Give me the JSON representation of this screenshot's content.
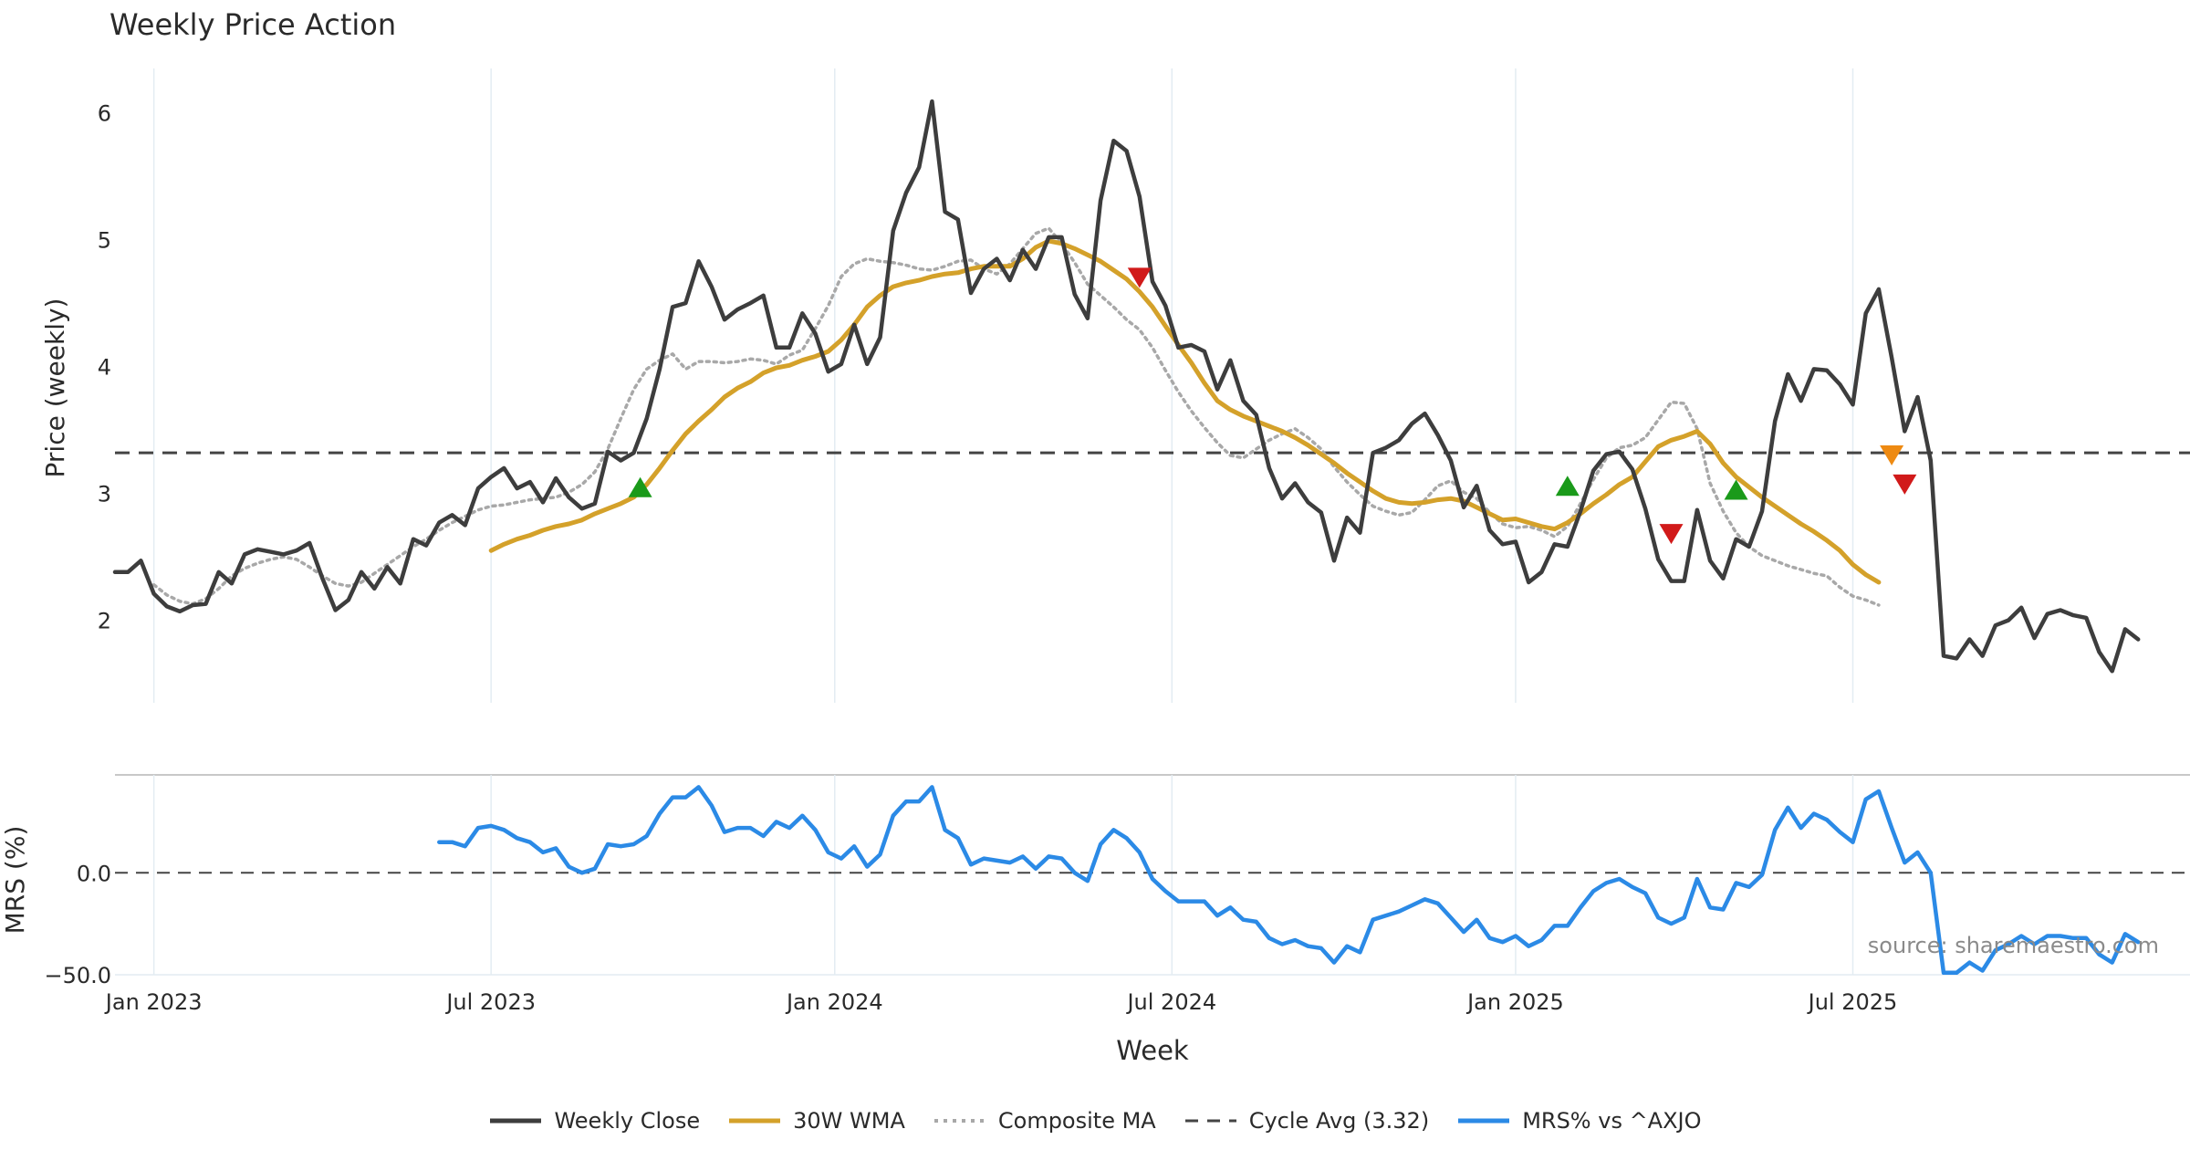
{
  "colors": {
    "close": "#3d3d3d",
    "wma": "#d4a12a",
    "composite": "#a8a8a8",
    "cycle": "#444444",
    "mrs": "#2b8ae6",
    "buy": "#1a9a1a",
    "sell": "#d11a1a",
    "warn": "#ee8a12",
    "grid": "#e3ecf2"
  },
  "chart_data": [
    {
      "type": "line",
      "title": "Weekly Price Action",
      "ylabel": "Price (weekly)",
      "xlabel": "Week",
      "ylim": [
        1.35,
        6.35
      ],
      "yticks": [
        2,
        3,
        4,
        5,
        6
      ],
      "xticks": [
        {
          "label": "Jan 2023",
          "week": 3
        },
        {
          "label": "Jul 2023",
          "week": 29
        },
        {
          "label": "Jan 2024",
          "week": 55.5
        },
        {
          "label": "Jul 2024",
          "week": 81.5
        },
        {
          "label": "Jan 2025",
          "week": 108
        },
        {
          "label": "Jul 2025",
          "week": 134
        }
      ],
      "cycle_avg": 3.32,
      "series": [
        {
          "name": "Weekly Close",
          "start_week": 0,
          "values": [
            2.38,
            2.38,
            2.47,
            2.21,
            2.11,
            2.07,
            2.12,
            2.13,
            2.38,
            2.29,
            2.52,
            2.56,
            2.54,
            2.52,
            2.55,
            2.61,
            2.33,
            2.08,
            2.16,
            2.38,
            2.25,
            2.42,
            2.29,
            2.64,
            2.59,
            2.77,
            2.83,
            2.75,
            3.04,
            3.13,
            3.2,
            3.04,
            3.09,
            2.93,
            3.12,
            2.97,
            2.88,
            2.92,
            3.33,
            3.26,
            3.32,
            3.59,
            3.98,
            4.47,
            4.5,
            4.83,
            4.63,
            4.37,
            4.45,
            4.5,
            4.56,
            4.15,
            4.15,
            4.42,
            4.26,
            3.96,
            4.02,
            4.33,
            4.02,
            4.23,
            5.07,
            5.37,
            5.57,
            6.09,
            5.22,
            5.16,
            4.58,
            4.77,
            4.85,
            4.68,
            4.92,
            4.77,
            5.02,
            5.02,
            4.57,
            4.38,
            5.31,
            5.78,
            5.7,
            5.34,
            4.67,
            4.48,
            4.15,
            4.17,
            4.12,
            3.82,
            4.05,
            3.73,
            3.62,
            3.2,
            2.96,
            3.08,
            2.93,
            2.85,
            2.47,
            2.81,
            2.69,
            3.32,
            3.36,
            3.42,
            3.55,
            3.63,
            3.46,
            3.26,
            2.89,
            3.06,
            2.71,
            2.6,
            2.62,
            2.3,
            2.38,
            2.6,
            2.58,
            2.86,
            3.18,
            3.31,
            3.33,
            3.19,
            2.88,
            2.48,
            2.31,
            2.31,
            2.87,
            2.47,
            2.33,
            2.64,
            2.58,
            2.86,
            3.57,
            3.94,
            3.73,
            3.98,
            3.97,
            3.86,
            3.7,
            4.42,
            4.61,
            4.07,
            3.49,
            3.76,
            3.26,
            1.72,
            1.7,
            1.85,
            1.72,
            1.96,
            2.0,
            2.1,
            1.86,
            2.05,
            2.08,
            2.04,
            2.02,
            1.75,
            1.6,
            1.93,
            1.85
          ]
        },
        {
          "name": "30W WMA",
          "start_week": 29,
          "values": [
            2.55,
            2.6,
            2.64,
            2.67,
            2.71,
            2.74,
            2.76,
            2.79,
            2.84,
            2.88,
            2.92,
            2.97,
            3.07,
            3.2,
            3.34,
            3.47,
            3.57,
            3.66,
            3.76,
            3.83,
            3.88,
            3.95,
            3.99,
            4.01,
            4.05,
            4.08,
            4.12,
            4.21,
            4.33,
            4.47,
            4.56,
            4.63,
            4.66,
            4.68,
            4.71,
            4.73,
            4.74,
            4.77,
            4.79,
            4.79,
            4.79,
            4.85,
            4.94,
            4.99,
            4.97,
            4.93,
            4.88,
            4.83,
            4.76,
            4.69,
            4.59,
            4.47,
            4.32,
            4.17,
            4.03,
            3.87,
            3.73,
            3.66,
            3.61,
            3.57,
            3.53,
            3.49,
            3.44,
            3.38,
            3.31,
            3.24,
            3.16,
            3.09,
            3.02,
            2.96,
            2.93,
            2.92,
            2.93,
            2.95,
            2.96,
            2.94,
            2.89,
            2.84,
            2.79,
            2.8,
            2.77,
            2.74,
            2.72,
            2.77,
            2.84,
            2.92,
            2.99,
            3.07,
            3.13,
            3.25,
            3.37,
            3.42,
            3.45,
            3.49,
            3.39,
            3.24,
            3.13,
            3.05,
            2.97,
            2.9,
            2.83,
            2.76,
            2.7,
            2.63,
            2.55,
            2.44,
            2.36,
            2.3
          ]
        },
        {
          "name": "Composite MA",
          "start_week": 3,
          "values": [
            2.28,
            2.2,
            2.15,
            2.13,
            2.17,
            2.25,
            2.35,
            2.41,
            2.45,
            2.48,
            2.5,
            2.48,
            2.42,
            2.35,
            2.29,
            2.27,
            2.3,
            2.37,
            2.44,
            2.51,
            2.58,
            2.64,
            2.71,
            2.77,
            2.82,
            2.87,
            2.9,
            2.91,
            2.93,
            2.95,
            2.96,
            2.97,
            3.01,
            3.07,
            3.17,
            3.35,
            3.59,
            3.82,
            3.98,
            4.05,
            4.1,
            3.98,
            4.04,
            4.04,
            4.03,
            4.04,
            4.06,
            4.05,
            4.02,
            4.09,
            4.13,
            4.3,
            4.48,
            4.71,
            4.81,
            4.85,
            4.83,
            4.82,
            4.8,
            4.77,
            4.76,
            4.79,
            4.83,
            4.84,
            4.77,
            4.73,
            4.81,
            4.93,
            5.05,
            5.09,
            4.97,
            4.82,
            4.65,
            4.56,
            4.47,
            4.37,
            4.29,
            4.15,
            3.97,
            3.8,
            3.65,
            3.52,
            3.4,
            3.3,
            3.28,
            3.35,
            3.42,
            3.47,
            3.51,
            3.44,
            3.35,
            3.21,
            3.09,
            2.99,
            2.9,
            2.86,
            2.83,
            2.85,
            2.95,
            3.06,
            3.1,
            3.01,
            2.96,
            2.85,
            2.76,
            2.73,
            2.74,
            2.71,
            2.66,
            2.74,
            2.92,
            3.11,
            3.28,
            3.36,
            3.38,
            3.44,
            3.58,
            3.72,
            3.71,
            3.51,
            3.08,
            2.86,
            2.69,
            2.58,
            2.51,
            2.47,
            2.43,
            2.4,
            2.37,
            2.35,
            2.26,
            2.19,
            2.16,
            2.12
          ]
        }
      ],
      "signals": [
        {
          "week": 40.5,
          "value": 3.05,
          "kind": "buy"
        },
        {
          "week": 79,
          "value": 4.7,
          "kind": "sell"
        },
        {
          "week": 112,
          "value": 3.06,
          "kind": "buy"
        },
        {
          "week": 120,
          "value": 2.68,
          "kind": "sell"
        },
        {
          "week": 125,
          "value": 3.03,
          "kind": "buy"
        },
        {
          "week": 137,
          "value": 3.3,
          "kind": "warn"
        },
        {
          "week": 138,
          "value": 3.07,
          "kind": "sell"
        }
      ]
    },
    {
      "type": "line",
      "ylabel": "MRS (%)",
      "ylim": [
        -50,
        48
      ],
      "yticks": [
        0,
        -50
      ],
      "ytick_labels": [
        "0.0",
        "−50.0"
      ],
      "zero_line": 0,
      "series": [
        {
          "name": "MRS% vs ^AXJO",
          "start_week": 25,
          "values": [
            15,
            15,
            13,
            22,
            23,
            21,
            17,
            15,
            10,
            12,
            3,
            0,
            2,
            14,
            13,
            14,
            18,
            29,
            37,
            37,
            42,
            33,
            20,
            22,
            22,
            18,
            25,
            22,
            28,
            21,
            10,
            7,
            13,
            3,
            9,
            28,
            35,
            35,
            42,
            21,
            17,
            4,
            7,
            6,
            5,
            8,
            2,
            8,
            7,
            0,
            -4,
            14,
            21,
            17,
            10,
            -3,
            -9,
            -14,
            -14,
            -14,
            -21,
            -17,
            -23,
            -24,
            -32,
            -35,
            -33,
            -36,
            -37,
            -44,
            -36,
            -39,
            -23,
            -21,
            -19,
            -16,
            -13,
            -15,
            -22,
            -29,
            -23,
            -32,
            -34,
            -31,
            -36,
            -33,
            -26,
            -26,
            -17,
            -9,
            -5,
            -3,
            -7,
            -10,
            -22,
            -25,
            -22,
            -3,
            -17,
            -18,
            -5,
            -7,
            -1,
            21,
            32,
            22,
            29,
            26,
            20,
            15,
            36,
            40,
            22,
            5,
            10,
            0,
            -49,
            -49,
            -44,
            -48,
            -38,
            -35,
            -31,
            -35,
            -31,
            -31,
            -32,
            -32,
            -40,
            -44,
            -30,
            -34
          ]
        }
      ]
    }
  ],
  "source_text": "source: sharemaestro.com",
  "legend": [
    {
      "label": "Weekly Close",
      "style": "solid",
      "color": "#3d3d3d"
    },
    {
      "label": "30W WMA",
      "style": "solid",
      "color": "#d4a12a"
    },
    {
      "label": "Composite MA",
      "style": "dotted",
      "color": "#a8a8a8"
    },
    {
      "label": "Cycle Avg (3.32)",
      "style": "dashed",
      "color": "#444444"
    },
    {
      "label": "MRS% vs ^AXJO",
      "style": "solid",
      "color": "#2b8ae6"
    }
  ]
}
